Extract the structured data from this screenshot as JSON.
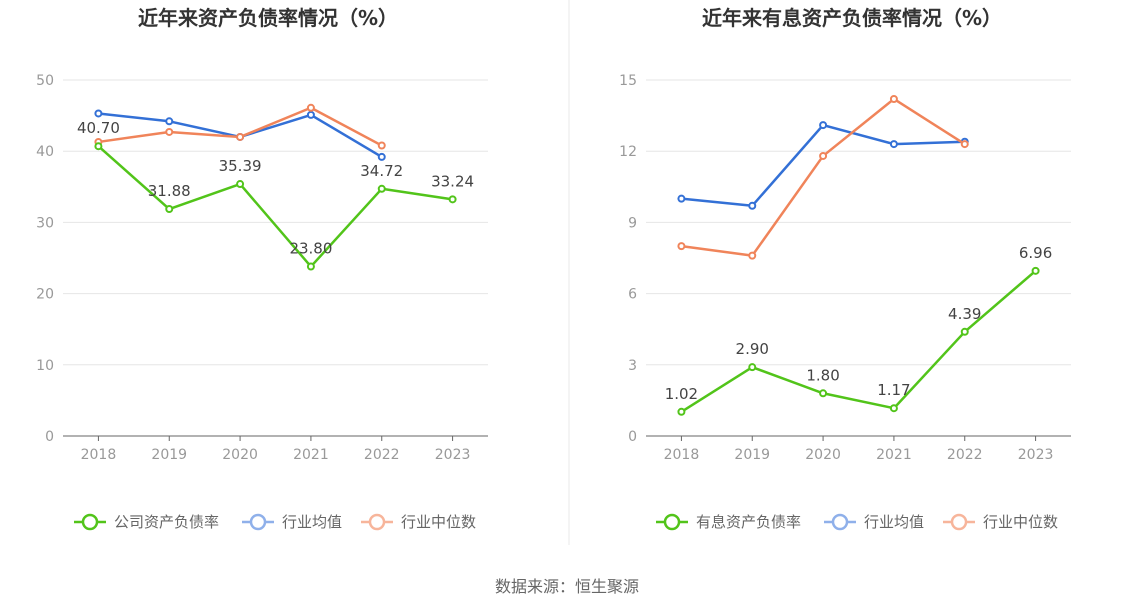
{
  "source_text": "数据来源：恒生聚源",
  "chart_data": [
    {
      "type": "line",
      "title": "近年来资产负债率情况（%）",
      "categories": [
        "2018",
        "2019",
        "2020",
        "2021",
        "2022",
        "2023"
      ],
      "ylim": [
        0,
        50
      ],
      "yticks": [
        "0",
        "10",
        "20",
        "30",
        "40",
        "50"
      ],
      "grid": true,
      "legend_position": "bottom",
      "series": [
        {
          "name": "公司资产负债率",
          "color": "#52c41a",
          "values": [
            40.7,
            31.88,
            35.39,
            23.8,
            34.72,
            33.24
          ],
          "labels": [
            "40.70",
            "31.88",
            "35.39",
            "23.80",
            "34.72",
            "33.24"
          ]
        },
        {
          "name": "行业均值",
          "color": "#3370d6",
          "values": [
            45.3,
            44.2,
            42.0,
            45.1,
            39.2,
            null
          ]
        },
        {
          "name": "行业中位数",
          "color": "#f0845a",
          "values": [
            41.3,
            42.7,
            42.0,
            46.1,
            40.8,
            null
          ]
        }
      ]
    },
    {
      "type": "line",
      "title": "近年来有息资产负债率情况（%）",
      "categories": [
        "2018",
        "2019",
        "2020",
        "2021",
        "2022",
        "2023"
      ],
      "ylim": [
        0,
        15
      ],
      "yticks": [
        "0",
        "3",
        "6",
        "9",
        "12",
        "15"
      ],
      "grid": true,
      "legend_position": "bottom",
      "series": [
        {
          "name": "有息资产负债率",
          "color": "#52c41a",
          "values": [
            1.02,
            2.9,
            1.8,
            1.17,
            4.39,
            6.96
          ],
          "labels": [
            "1.02",
            "2.90",
            "1.80",
            "1.17",
            "4.39",
            "6.96"
          ]
        },
        {
          "name": "行业均值",
          "color": "#3370d6",
          "values": [
            10.0,
            9.7,
            13.1,
            12.3,
            12.4,
            null
          ]
        },
        {
          "name": "行业中位数",
          "color": "#f0845a",
          "values": [
            8.0,
            7.6,
            11.8,
            14.2,
            12.3,
            null
          ]
        }
      ]
    }
  ]
}
